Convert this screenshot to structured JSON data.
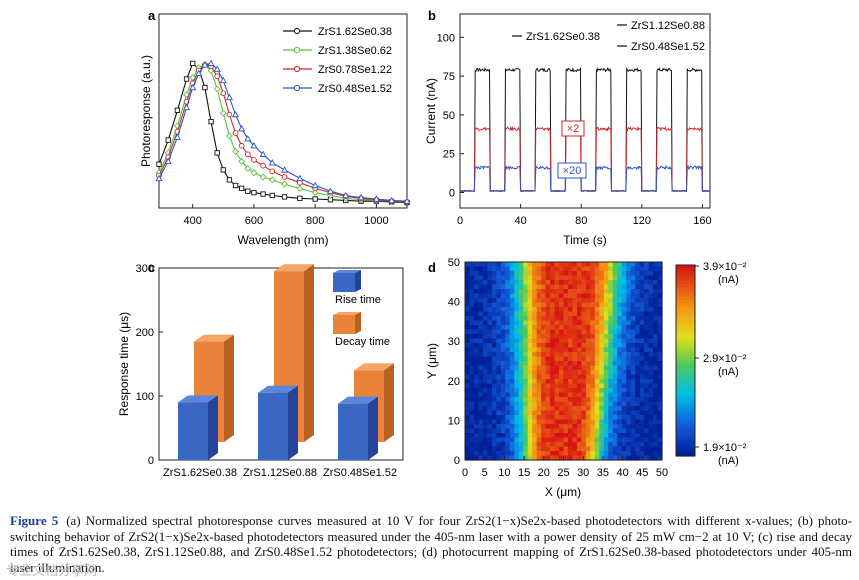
{
  "panel_labels": {
    "a": "a",
    "b": "b",
    "c": "c",
    "d": "d"
  },
  "caption": {
    "label": "Figure 5",
    "text": "(a) Normalized spectral photoresponse curves measured at 10 V for four ZrS2(1−x)Se2x-based photodetectors with different x-values; (b) photo-switching behavior of ZrS2(1−x)Se2x-based photodetectors measured under the 405-nm laser with a power density of 25 mW cm−2 at 10 V; (c) rise and decay times of ZrS1.62Se0.38, ZrS1.12Se0.88, and ZrS0.48Se1.52 photodetectors; (d) photocurrent mapping of ZrS1.62Se0.38-based photodetectors under 405-nm laser illumination."
  },
  "watermark": "专业文档分享网",
  "colors": {
    "black": "#111111",
    "green": "#5cc23b",
    "red": "#d4282b",
    "blue": "#2f56c2",
    "bar_blue": "#3a66c4",
    "bar_orange": "#e9833a"
  },
  "chart_data": [
    {
      "id": "a",
      "type": "line",
      "xlabel": "Wavelength (nm)",
      "ylabel": "Photoresponse (a.u.)",
      "xlim": [
        290,
        1100
      ],
      "xticks": [
        "400",
        "600",
        "800",
        "1000"
      ],
      "xtick_values": [
        400,
        600,
        800,
        1000
      ],
      "grid": false,
      "legend_position": "top-right",
      "x": [
        290,
        320,
        350,
        380,
        400,
        420,
        440,
        460,
        480,
        500,
        520,
        540,
        560,
        580,
        600,
        630,
        660,
        700,
        750,
        800,
        850,
        900,
        950,
        1000,
        1050,
        1100
      ],
      "series": [
        {
          "name": "ZrS1.62Se0.38",
          "values": [
            0.28,
            0.45,
            0.66,
            0.88,
            0.99,
            0.95,
            0.82,
            0.58,
            0.36,
            0.24,
            0.17,
            0.13,
            0.11,
            0.09,
            0.08,
            0.07,
            0.06,
            0.05,
            0.04,
            0.035,
            0.03,
            0.025,
            0.02,
            0.02,
            0.015,
            0.01
          ]
        },
        {
          "name": "ZrS1.38Se0.62",
          "values": [
            0.22,
            0.36,
            0.55,
            0.77,
            0.89,
            0.96,
            0.98,
            0.94,
            0.81,
            0.64,
            0.48,
            0.37,
            0.3,
            0.25,
            0.22,
            0.19,
            0.17,
            0.14,
            0.11,
            0.08,
            0.06,
            0.04,
            0.03,
            0.025,
            0.02,
            0.015
          ]
        },
        {
          "name": "ZrS0.78Se1.22",
          "values": [
            0.2,
            0.33,
            0.51,
            0.72,
            0.85,
            0.94,
            0.98,
            0.97,
            0.9,
            0.78,
            0.63,
            0.5,
            0.41,
            0.35,
            0.31,
            0.27,
            0.23,
            0.19,
            0.15,
            0.11,
            0.08,
            0.055,
            0.04,
            0.03,
            0.02,
            0.015
          ]
        },
        {
          "name": "ZrS0.48Se1.52",
          "values": [
            0.18,
            0.3,
            0.47,
            0.68,
            0.82,
            0.92,
            0.98,
            0.99,
            0.95,
            0.87,
            0.75,
            0.63,
            0.53,
            0.46,
            0.41,
            0.35,
            0.29,
            0.24,
            0.18,
            0.13,
            0.09,
            0.06,
            0.045,
            0.035,
            0.025,
            0.02
          ]
        }
      ]
    },
    {
      "id": "b",
      "type": "line",
      "xlabel": "Time (s)",
      "ylabel": "Current (nA)",
      "xlim": [
        0,
        165
      ],
      "ylim": [
        -10,
        115
      ],
      "xticks": [
        "0",
        "40",
        "80",
        "120",
        "160"
      ],
      "xtick_values": [
        0,
        40,
        80,
        120,
        160
      ],
      "yticks": [
        "0",
        "25",
        "50",
        "75",
        "100"
      ],
      "ytick_values": [
        0,
        25,
        50,
        75,
        100
      ],
      "grid": false,
      "legend_position": "top",
      "period_s": 20,
      "on_duration_s": 10,
      "first_on_s": 10,
      "cycles": 8,
      "series": [
        {
          "name": "ZrS1.62Se0.38",
          "on": 79,
          "off": 1
        },
        {
          "name": "ZrS1.12Se0.88",
          "on": 41,
          "off": 1
        },
        {
          "name": "ZrS0.48Se1.52",
          "on": 16,
          "off": 1
        }
      ],
      "annotations": [
        "×2",
        "×20"
      ]
    },
    {
      "id": "c",
      "type": "bar",
      "ylabel": "Response time (μs)",
      "ylim": [
        0,
        300
      ],
      "yticks": [
        "0",
        "100",
        "200",
        "300"
      ],
      "ytick_values": [
        0,
        100,
        200,
        300
      ],
      "categories": [
        "ZrS1.62Se0.38",
        "ZrS1.12Se0.88",
        "ZrS0.48Se1.52"
      ],
      "series": [
        {
          "name": "Rise time",
          "values": [
            90,
            105,
            88
          ]
        },
        {
          "name": "Decay time",
          "values": [
            185,
            295,
            140
          ]
        }
      ],
      "legend_position": "top-right"
    },
    {
      "id": "d",
      "type": "heatmap",
      "xlabel": "X (μm)",
      "ylabel": "Y (μm)",
      "xlim": [
        0,
        50
      ],
      "ylim": [
        0,
        50
      ],
      "xticks": [
        "0",
        "5",
        "10",
        "15",
        "20",
        "25",
        "30",
        "35",
        "40",
        "45",
        "50"
      ],
      "yticks": [
        "0",
        "10",
        "20",
        "30",
        "40",
        "50"
      ],
      "colorbar": {
        "ticks": [
          "3.9×10⁻²",
          "2.9×10⁻²",
          "1.9×10⁻²"
        ],
        "unit": "(nA)",
        "min": 0.019,
        "max": 0.039
      }
    }
  ]
}
